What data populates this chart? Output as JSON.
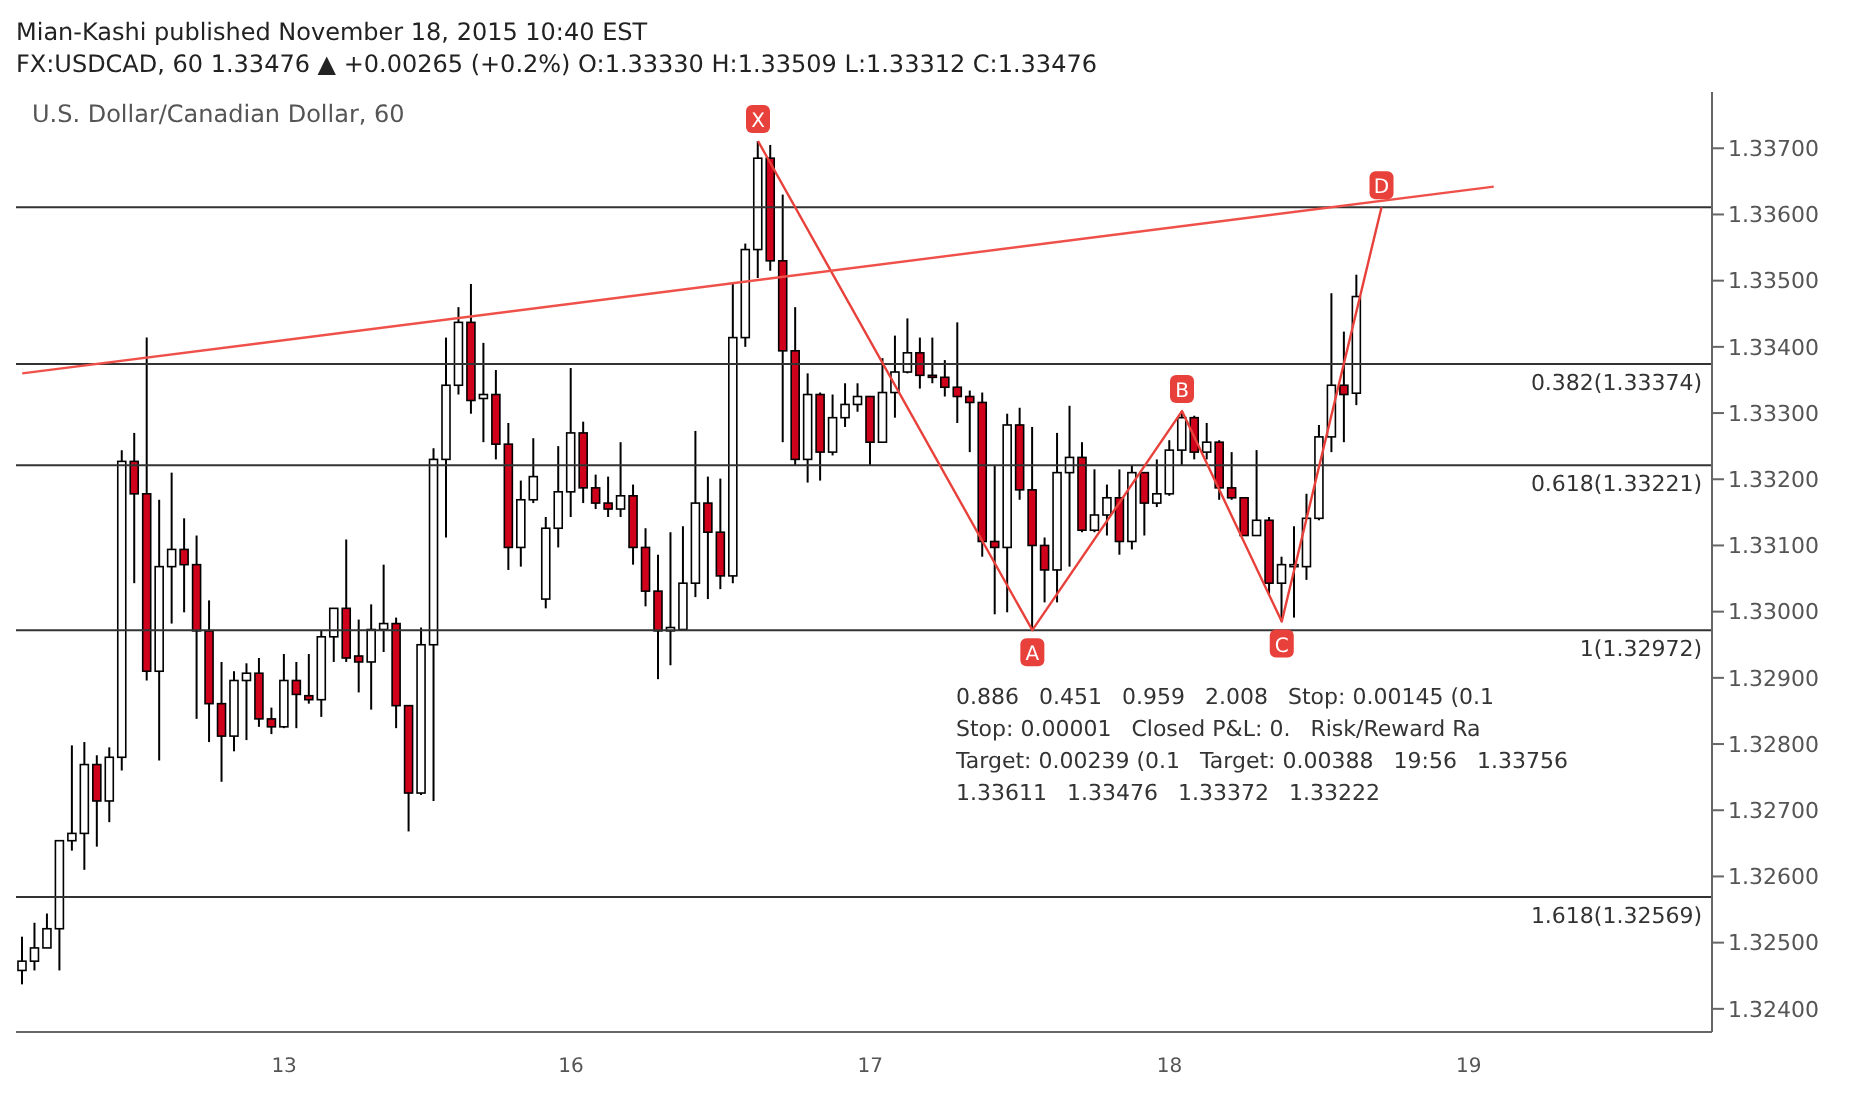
{
  "chart_data": {
    "type": "candlestick",
    "title": "U.S. Dollar/Canadian Dollar, 60",
    "subtitle": "Mian-Kashi published November 18, 2015 10:40 EST",
    "categories": [
      null,
      null,
      null,
      null,
      null,
      null,
      null,
      null,
      null,
      null,
      null,
      null,
      null,
      null,
      null,
      null,
      null,
      null,
      null,
      null,
      null,
      "13",
      null,
      null,
      null,
      null,
      null,
      null,
      null,
      null,
      null,
      null,
      null,
      null,
      null,
      null,
      null,
      null,
      null,
      null,
      null,
      null,
      null,
      null,
      "16",
      null,
      null,
      null,
      null,
      null,
      null,
      null,
      null,
      null,
      null,
      null,
      null,
      null,
      null,
      null,
      null,
      null,
      null,
      null,
      null,
      null,
      null,
      null,
      "17",
      null,
      null,
      null,
      null,
      null,
      null,
      null,
      null,
      null,
      null,
      null,
      null,
      null,
      null,
      null,
      null,
      null,
      null,
      null,
      null,
      null,
      null,
      null,
      "18",
      null,
      null,
      null,
      null,
      null,
      null,
      null,
      null,
      null,
      null,
      null,
      null,
      null,
      null,
      null,
      null,
      null,
      null,
      null,
      null,
      null,
      null,
      null,
      "19",
      null,
      null,
      null,
      null,
      null,
      null,
      null,
      null,
      null,
      null,
      null,
      null,
      null,
      null,
      null,
      null,
      null,
      null,
      null
    ],
    "ohlc": [
      [
        1.32458,
        1.32509,
        1.32437,
        1.32472
      ],
      [
        1.32472,
        1.3253,
        1.32458,
        1.32492
      ],
      [
        1.32492,
        1.32544,
        1.32492,
        1.32521
      ],
      [
        1.32521,
        1.32654,
        1.32458,
        1.32654
      ],
      [
        1.32654,
        1.32798,
        1.32639,
        1.32665
      ],
      [
        1.32665,
        1.32803,
        1.3261,
        1.32769
      ],
      [
        1.32769,
        1.32783,
        1.32645,
        1.32714
      ],
      [
        1.32714,
        1.32795,
        1.32682,
        1.3278
      ],
      [
        1.3278,
        1.33244,
        1.3276,
        1.33227
      ],
      [
        1.33227,
        1.3327,
        1.33043,
        1.33178
      ],
      [
        1.33178,
        1.33414,
        1.32896,
        1.3291
      ],
      [
        1.3291,
        1.33169,
        1.32775,
        1.33068
      ],
      [
        1.33068,
        1.3321,
        1.32982,
        1.33094
      ],
      [
        1.33094,
        1.33141,
        1.32999,
        1.33071
      ],
      [
        1.33071,
        1.33115,
        1.32838,
        1.32971
      ],
      [
        1.32971,
        1.33017,
        1.32803,
        1.32861
      ],
      [
        1.32861,
        1.32924,
        1.32743,
        1.32812
      ],
      [
        1.32812,
        1.3291,
        1.32789,
        1.32896
      ],
      [
        1.32896,
        1.32922,
        1.32806,
        1.32907
      ],
      [
        1.32907,
        1.3293,
        1.32826,
        1.32838
      ],
      [
        1.32838,
        1.32855,
        1.32815,
        1.32826
      ],
      [
        1.32826,
        1.32936,
        1.32824,
        1.32896
      ],
      [
        1.32896,
        1.32924,
        1.32824,
        1.32875
      ],
      [
        1.32873,
        1.32936,
        1.32861,
        1.32867
      ],
      [
        1.32867,
        1.32971,
        1.32841,
        1.32962
      ],
      [
        1.32962,
        1.33005,
        1.32924,
        1.33005
      ],
      [
        1.33005,
        1.33109,
        1.32924,
        1.3293
      ],
      [
        1.32933,
        1.32988,
        1.32878,
        1.32924
      ],
      [
        1.32924,
        1.33011,
        1.32852,
        1.32973
      ],
      [
        1.32973,
        1.33071,
        1.32939,
        1.32982
      ],
      [
        1.32982,
        1.32991,
        1.32824,
        1.32858
      ],
      [
        1.32858,
        1.32858,
        1.32668,
        1.32726
      ],
      [
        1.32726,
        1.32976,
        1.32723,
        1.3295
      ],
      [
        1.3295,
        1.33247,
        1.32714,
        1.3323
      ],
      [
        1.3323,
        1.33414,
        1.33112,
        1.33342
      ],
      [
        1.33342,
        1.3346,
        1.33328,
        1.33437
      ],
      [
        1.33437,
        1.33495,
        1.33299,
        1.33319
      ],
      [
        1.33322,
        1.33406,
        1.33256,
        1.33328
      ],
      [
        1.33328,
        1.33365,
        1.3323,
        1.33253
      ],
      [
        1.33253,
        1.33285,
        1.33063,
        1.33097
      ],
      [
        1.33097,
        1.33198,
        1.33068,
        1.33169
      ],
      [
        1.33169,
        1.33262,
        1.33164,
        1.33204
      ],
      [
        1.33019,
        1.33143,
        1.33005,
        1.33126
      ],
      [
        1.33126,
        1.3325,
        1.33097,
        1.33181
      ],
      [
        1.33181,
        1.33368,
        1.33143,
        1.3327
      ],
      [
        1.3327,
        1.33287,
        1.33164,
        1.33187
      ],
      [
        1.33187,
        1.33207,
        1.33155,
        1.33164
      ],
      [
        1.33164,
        1.33204,
        1.33143,
        1.33155
      ],
      [
        1.33155,
        1.33256,
        1.33143,
        1.33175
      ],
      [
        1.33175,
        1.33192,
        1.33071,
        1.33097
      ],
      [
        1.33097,
        1.33126,
        1.33008,
        1.33031
      ],
      [
        1.33031,
        1.33086,
        1.32898,
        1.32971
      ],
      [
        1.32971,
        1.3312,
        1.32919,
        1.32976
      ],
      [
        1.32973,
        1.33129,
        1.32971,
        1.33043
      ],
      [
        1.33043,
        1.33273,
        1.33022,
        1.33164
      ],
      [
        1.33164,
        1.33204,
        1.33019,
        1.3312
      ],
      [
        1.3312,
        1.33201,
        1.33034,
        1.33054
      ],
      [
        1.33054,
        1.33498,
        1.33043,
        1.33414
      ],
      [
        1.33414,
        1.33556,
        1.334,
        1.33547
      ],
      [
        1.33547,
        1.33711,
        1.33504,
        1.33685
      ],
      [
        1.33685,
        1.33705,
        1.33515,
        1.3353
      ],
      [
        1.3353,
        1.3363,
        1.33256,
        1.33394
      ],
      [
        1.33394,
        1.3346,
        1.33221,
        1.3323
      ],
      [
        1.3323,
        1.3336,
        1.33195,
        1.33328
      ],
      [
        1.33328,
        1.33331,
        1.33198,
        1.33241
      ],
      [
        1.33241,
        1.33328,
        1.33236,
        1.33293
      ],
      [
        1.33293,
        1.33345,
        1.33279,
        1.33313
      ],
      [
        1.33313,
        1.33345,
        1.33302,
        1.33325
      ],
      [
        1.33325,
        1.33325,
        1.33221,
        1.33256
      ],
      [
        1.33256,
        1.33383,
        1.33256,
        1.33331
      ],
      [
        1.33331,
        1.33417,
        1.33293,
        1.33362
      ],
      [
        1.33362,
        1.33443,
        1.3336,
        1.33391
      ],
      [
        1.33391,
        1.33414,
        1.33337,
        1.33357
      ],
      [
        1.33357,
        1.33414,
        1.33345,
        1.33354
      ],
      [
        1.33354,
        1.3338,
        1.33325,
        1.33339
      ],
      [
        1.33339,
        1.33437,
        1.33285,
        1.33325
      ],
      [
        1.33325,
        1.33334,
        1.33241,
        1.33316
      ],
      [
        1.33316,
        1.33331,
        1.33083,
        1.33106
      ],
      [
        1.33106,
        1.33221,
        1.32996,
        1.33097
      ],
      [
        1.33097,
        1.33299,
        1.32999,
        1.33282
      ],
      [
        1.33282,
        1.33308,
        1.33169,
        1.33184
      ],
      [
        1.33184,
        1.33279,
        1.32972,
        1.331
      ],
      [
        1.331,
        1.33112,
        1.33014,
        1.33063
      ],
      [
        1.33063,
        1.3327,
        1.33014,
        1.3321
      ],
      [
        1.3321,
        1.33311,
        1.33068,
        1.33233
      ],
      [
        1.33233,
        1.33256,
        1.3312,
        1.33123
      ],
      [
        1.33123,
        1.33215,
        1.3312,
        1.33146
      ],
      [
        1.33146,
        1.33192,
        1.33115,
        1.33172
      ],
      [
        1.33172,
        1.33215,
        1.33086,
        1.33106
      ],
      [
        1.33106,
        1.33221,
        1.33094,
        1.3321
      ],
      [
        1.3321,
        1.3321,
        1.33115,
        1.33164
      ],
      [
        1.33164,
        1.3323,
        1.33158,
        1.33178
      ],
      [
        1.33178,
        1.33259,
        1.33175,
        1.33244
      ],
      [
        1.33244,
        1.33303,
        1.33221,
        1.33293
      ],
      [
        1.33293,
        1.33296,
        1.3323,
        1.33241
      ],
      [
        1.33241,
        1.33285,
        1.3323,
        1.33256
      ],
      [
        1.33256,
        1.33259,
        1.33169,
        1.33187
      ],
      [
        1.33187,
        1.33241,
        1.33169,
        1.33172
      ],
      [
        1.33172,
        1.33172,
        1.33115,
        1.33115
      ],
      [
        1.33115,
        1.33244,
        1.33115,
        1.33138
      ],
      [
        1.33138,
        1.33143,
        1.33025,
        1.33043
      ],
      [
        1.33043,
        1.33083,
        1.32985,
        1.33071
      ],
      [
        1.33068,
        1.33129,
        1.32991,
        1.33071
      ],
      [
        1.33068,
        1.33178,
        1.33048,
        1.33141
      ],
      [
        1.33141,
        1.33282,
        1.33138,
        1.33264
      ],
      [
        1.33264,
        1.33481,
        1.33241,
        1.33342
      ],
      [
        1.33342,
        1.33423,
        1.33256,
        1.33328
      ],
      [
        1.3333,
        1.33509,
        1.33312,
        1.33476
      ],
      null,
      null,
      null,
      null,
      null,
      null,
      null,
      null,
      null,
      null,
      null,
      null,
      null,
      null,
      null,
      null,
      null,
      null,
      null,
      null,
      null,
      null,
      null,
      null,
      null,
      null,
      null,
      null
    ],
    "series": [
      {
        "type": "line",
        "color": "#e8413b",
        "values": [
          null,
          null,
          null,
          null,
          null,
          null,
          null,
          null,
          null,
          null,
          null,
          null,
          null,
          null,
          null,
          null,
          null,
          null,
          null,
          null,
          null,
          null,
          null,
          null,
          null,
          null,
          null,
          null,
          null,
          null,
          null,
          null,
          null,
          null,
          null,
          null,
          null,
          null,
          null,
          null,
          null,
          null,
          null,
          null,
          null,
          null,
          null,
          null,
          null,
          null,
          null,
          null,
          null,
          null,
          null,
          null,
          null,
          null,
          null,
          1.33711,
          null,
          null,
          null,
          null,
          null,
          null,
          null,
          null,
          null,
          null,
          null,
          null,
          null,
          null,
          null,
          null,
          null,
          null,
          null,
          null,
          null,
          1.32972,
          null,
          null,
          null,
          null,
          null,
          null,
          null,
          null,
          null,
          null,
          null,
          1.33303,
          null,
          null,
          null,
          null,
          null,
          null,
          null,
          1.32985,
          null,
          null,
          null,
          null,
          null,
          null,
          null,
          1.33611,
          null,
          null,
          null,
          null,
          null,
          null,
          null,
          null,
          null,
          null,
          null,
          null,
          null,
          null,
          null,
          null,
          null,
          null,
          null,
          null,
          null,
          null,
          null,
          null,
          null,
          null
        ],
        "value_labels": [
          null,
          null,
          null,
          null,
          null,
          null,
          null,
          null,
          null,
          null,
          null,
          null,
          null,
          null,
          null,
          null,
          null,
          null,
          null,
          null,
          null,
          null,
          null,
          null,
          null,
          null,
          null,
          null,
          null,
          null,
          null,
          null,
          null,
          null,
          null,
          null,
          null,
          null,
          null,
          null,
          null,
          null,
          null,
          null,
          null,
          null,
          null,
          null,
          null,
          null,
          null,
          null,
          null,
          null,
          null,
          null,
          null,
          null,
          null,
          "X",
          null,
          null,
          null,
          null,
          null,
          null,
          null,
          null,
          null,
          null,
          null,
          null,
          null,
          null,
          null,
          null,
          null,
          null,
          null,
          null,
          null,
          "A",
          null,
          null,
          null,
          null,
          null,
          null,
          null,
          null,
          null,
          null,
          null,
          "B",
          null,
          null,
          null,
          null,
          null,
          null,
          null,
          "C",
          null,
          null,
          null,
          null,
          null,
          null,
          null,
          "D",
          null,
          null,
          null,
          null,
          null,
          null,
          null,
          null,
          null,
          null,
          null,
          null,
          null,
          null,
          null,
          null,
          null,
          null,
          null,
          null,
          null,
          null,
          null,
          null,
          null,
          null
        ]
      },
      {
        "type": "line",
        "color": "#f0504a",
        "values": [
          1.3336,
          null,
          null,
          null,
          null,
          null,
          null,
          null,
          null,
          null,
          null,
          null,
          null,
          null,
          null,
          null,
          null,
          null,
          null,
          null,
          null,
          null,
          null,
          null,
          null,
          null,
          null,
          null,
          null,
          null,
          null,
          null,
          null,
          null,
          null,
          null,
          null,
          null,
          null,
          null,
          null,
          null,
          null,
          null,
          null,
          null,
          null,
          null,
          null,
          null,
          null,
          null,
          null,
          null,
          null,
          null,
          null,
          null,
          null,
          null,
          null,
          null,
          null,
          null,
          null,
          null,
          null,
          null,
          null,
          null,
          null,
          null,
          null,
          null,
          null,
          null,
          null,
          null,
          null,
          null,
          null,
          null,
          null,
          null,
          null,
          null,
          null,
          null,
          null,
          null,
          null,
          null,
          null,
          null,
          null,
          null,
          null,
          null,
          null,
          null,
          null,
          null,
          null,
          null,
          null,
          null,
          null,
          null,
          null,
          null,
          null,
          null,
          null,
          null,
          null,
          null,
          null,
          null,
          1.33642,
          null,
          null,
          null,
          null,
          null,
          null,
          null,
          null,
          null,
          null,
          null,
          null,
          null,
          null,
          null,
          null,
          null
        ]
      }
    ],
    "ylim": [
      1.32365,
      1.33785
    ],
    "yticks": [
      {
        "value": 1.324,
        "label": "1.32400"
      },
      {
        "value": 1.325,
        "label": "1.32500"
      },
      {
        "value": 1.326,
        "label": "1.32600"
      },
      {
        "value": 1.327,
        "label": "1.32700"
      },
      {
        "value": 1.328,
        "label": "1.32800"
      },
      {
        "value": 1.329,
        "label": "1.32900"
      },
      {
        "value": 1.33,
        "label": "1.33000"
      },
      {
        "value": 1.331,
        "label": "1.33100"
      },
      {
        "value": 1.332,
        "label": "1.33200"
      },
      {
        "value": 1.333,
        "label": "1.33300"
      },
      {
        "value": 1.334,
        "label": "1.33400"
      },
      {
        "value": 1.335,
        "label": "1.33500"
      },
      {
        "value": 1.336,
        "label": "1.33600"
      },
      {
        "value": 1.337,
        "label": "1.33700"
      }
    ],
    "ref_lines": [
      {
        "axis": "y",
        "value": 1.33611,
        "label": null,
        "color": "#333333"
      },
      {
        "axis": "y",
        "value": 1.33374,
        "label": "0.382(1.33374)",
        "color": "#333333"
      },
      {
        "axis": "y",
        "value": 1.33221,
        "label": "0.618(1.33221)",
        "color": "#333333"
      },
      {
        "axis": "y",
        "value": 1.32972,
        "label": "1(1.32972)",
        "color": "#333333"
      },
      {
        "axis": "y",
        "value": 1.32569,
        "label": "1.618(1.32569)",
        "color": "#333333"
      }
    ],
    "annotations": [
      "FX:USDCAD, 60  1.33476 ▲ +0.00265 (+0.2%) O:1.33330 H:1.33509 L:1.33312 C:1.33476",
      "0.886",
      "0.451",
      "0.959",
      "2.008",
      "Stop: 0.00145 (0.1",
      "Stop: 0.00001",
      "Closed P&L: 0.",
      "Risk/Reward Ra",
      "Target: 0.00239 (0.1",
      "Target: 0.00388",
      "19:56",
      "1.33756",
      "1.33611",
      "1.33476",
      "1.33372",
      "1.33222"
    ],
    "grid": false
  }
}
